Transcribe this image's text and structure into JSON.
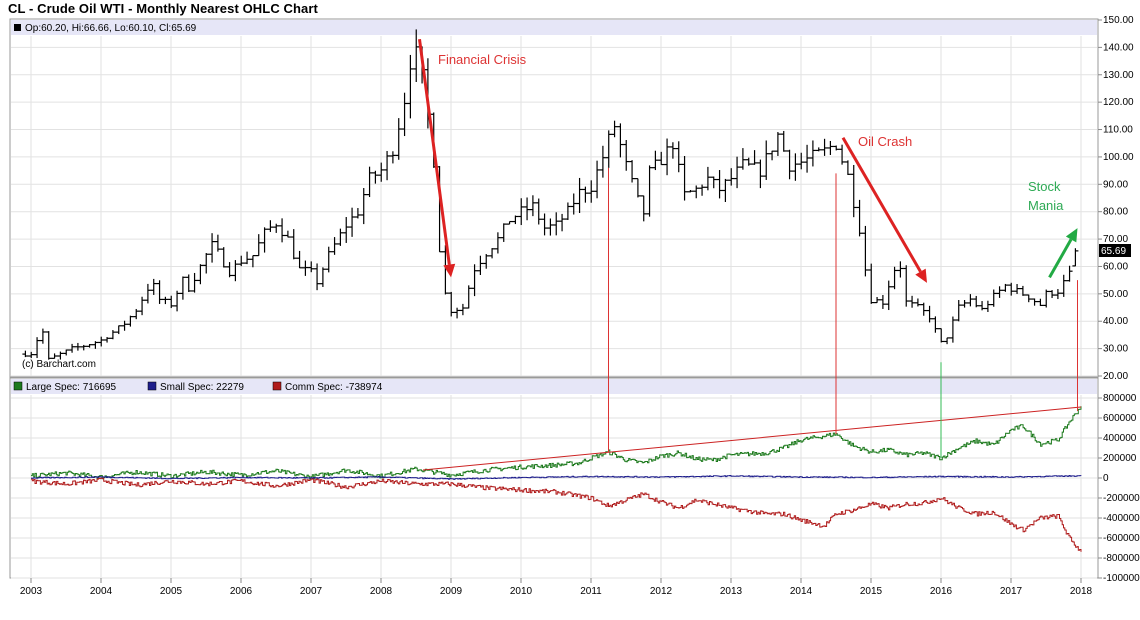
{
  "page": {
    "title": "CL - Crude Oil WTI - Monthly Nearest OHLC Chart"
  },
  "chart_data": [
    {
      "type": "ohlc",
      "legend_text": "Op:60.20, Hi:66.66, Lo:60.10, Cl:65.69",
      "last_price_label": "65.69",
      "watermark": "(c) Barchart.com",
      "ylim": [
        20,
        150
      ],
      "yticks": [
        20,
        30,
        40,
        50,
        60,
        70,
        80,
        90,
        100,
        110,
        120,
        130,
        140,
        150
      ],
      "ytick_labels": [
        "20.00",
        "30.00",
        "40.00",
        "50.00",
        "60.00",
        "70.00",
        "80.00",
        "90.00",
        "100.00",
        "110.00",
        "120.00",
        "130.00",
        "140.00",
        "150.00"
      ],
      "x_anchors": [
        [
          2003,
          31
        ],
        [
          2008.5,
          400
        ],
        [
          2009,
          435
        ]
      ],
      "close_path": [
        [
          2003.0,
          28
        ],
        [
          2003.08,
          33
        ],
        [
          2003.17,
          36
        ],
        [
          2003.25,
          26
        ],
        [
          2003.42,
          28
        ],
        [
          2003.58,
          30
        ],
        [
          2003.75,
          31
        ],
        [
          2004.0,
          33
        ],
        [
          2004.17,
          36
        ],
        [
          2004.33,
          39
        ],
        [
          2004.5,
          44
        ],
        [
          2004.67,
          52
        ],
        [
          2004.75,
          53
        ],
        [
          2004.83,
          48
        ],
        [
          2005.0,
          46
        ],
        [
          2005.17,
          55
        ],
        [
          2005.25,
          52
        ],
        [
          2005.42,
          60
        ],
        [
          2005.58,
          68
        ],
        [
          2005.67,
          65
        ],
        [
          2005.83,
          58
        ],
        [
          2006.0,
          62
        ],
        [
          2006.17,
          64
        ],
        [
          2006.33,
          72
        ],
        [
          2006.5,
          76
        ],
        [
          2006.67,
          70
        ],
        [
          2006.83,
          59
        ],
        [
          2007.0,
          58
        ],
        [
          2007.08,
          54
        ],
        [
          2007.25,
          64
        ],
        [
          2007.5,
          75
        ],
        [
          2007.67,
          80
        ],
        [
          2007.83,
          92
        ],
        [
          2008.0,
          95
        ],
        [
          2008.17,
          103
        ],
        [
          2008.33,
          120
        ],
        [
          2008.45,
          140
        ],
        [
          2008.55,
          135
        ],
        [
          2008.67,
          115
        ],
        [
          2008.75,
          100
        ],
        [
          2008.83,
          68
        ],
        [
          2008.92,
          50
        ],
        [
          2009.0,
          44
        ],
        [
          2009.17,
          45
        ],
        [
          2009.33,
          59
        ],
        [
          2009.5,
          65
        ],
        [
          2009.67,
          70
        ],
        [
          2009.83,
          77
        ],
        [
          2010.0,
          80
        ],
        [
          2010.17,
          82
        ],
        [
          2010.33,
          74
        ],
        [
          2010.5,
          75
        ],
        [
          2010.67,
          80
        ],
        [
          2010.83,
          87
        ],
        [
          2011.0,
          89
        ],
        [
          2011.17,
          100
        ],
        [
          2011.33,
          112
        ],
        [
          2011.5,
          97
        ],
        [
          2011.67,
          84
        ],
        [
          2011.75,
          79
        ],
        [
          2011.83,
          94
        ],
        [
          2012.0,
          99
        ],
        [
          2012.17,
          105
        ],
        [
          2012.33,
          86
        ],
        [
          2012.5,
          88
        ],
        [
          2012.67,
          92
        ],
        [
          2012.83,
          88
        ],
        [
          2013.0,
          92
        ],
        [
          2013.17,
          97
        ],
        [
          2013.42,
          95
        ],
        [
          2013.67,
          108
        ],
        [
          2013.83,
          97
        ],
        [
          2014.0,
          98
        ],
        [
          2014.33,
          102
        ],
        [
          2014.5,
          105
        ],
        [
          2014.67,
          93
        ],
        [
          2014.83,
          75
        ],
        [
          2014.92,
          59
        ],
        [
          2015.0,
          48
        ],
        [
          2015.17,
          47
        ],
        [
          2015.33,
          59
        ],
        [
          2015.42,
          60
        ],
        [
          2015.5,
          47
        ],
        [
          2015.67,
          45
        ],
        [
          2015.83,
          42
        ],
        [
          2016.0,
          32
        ],
        [
          2016.08,
          34
        ],
        [
          2016.25,
          45
        ],
        [
          2016.42,
          48
        ],
        [
          2016.58,
          44
        ],
        [
          2016.75,
          49
        ],
        [
          2016.92,
          53
        ],
        [
          2017.0,
          52
        ],
        [
          2017.25,
          49
        ],
        [
          2017.42,
          46
        ],
        [
          2017.5,
          50
        ],
        [
          2017.67,
          51
        ],
        [
          2017.83,
          57
        ],
        [
          2017.92,
          60
        ],
        [
          2018.0,
          65.69
        ]
      ],
      "annotations": [
        {
          "text": "Financial Crisis",
          "color": "#dd3333"
        },
        {
          "text": "Oil Crash",
          "color": "#dd3333"
        },
        {
          "lines": [
            "Stock",
            "Mania"
          ],
          "color": "#2eaa55"
        }
      ],
      "arrows": [
        {
          "from": [
            2008.55,
            143
          ],
          "to": [
            2009.0,
            56
          ],
          "color": "#dd2222"
        },
        {
          "from": [
            2014.6,
            107
          ],
          "to": [
            2015.8,
            54
          ],
          "color": "#dd2222"
        },
        {
          "from": [
            2017.55,
            56
          ],
          "to": [
            2017.95,
            74
          ],
          "color": "#22aa44"
        }
      ],
      "drop_lines": [
        {
          "x": 2011.25,
          "y_top": 96,
          "color": "#dd3333"
        },
        {
          "x": 2014.5,
          "y_top": 94,
          "color": "#dd3333"
        },
        {
          "x": 2016.0,
          "y_top": 25,
          "color": "#33bb55"
        },
        {
          "x": 2017.95,
          "y_top": 55,
          "color": "#dd3333"
        }
      ]
    },
    {
      "type": "line",
      "legend": [
        {
          "name": "Large Spec: 716695",
          "color": "#1d7a1d"
        },
        {
          "name": "Small Spec: 22279",
          "color": "#1d1d8c"
        },
        {
          "name": "Comm Spec: -738974",
          "color": "#b01c1c"
        }
      ],
      "ylim": [
        -1000000,
        800000
      ],
      "yticks": [
        -1000000,
        -800000,
        -600000,
        -400000,
        -200000,
        0,
        200000,
        400000,
        600000,
        800000
      ],
      "ytick_labels": [
        "-1000000",
        "-800000",
        "-600000",
        "-400000",
        "-200000",
        "0",
        "200000",
        "400000",
        "600000",
        "800000"
      ],
      "large_spec": [
        [
          2003.0,
          20000
        ],
        [
          2003.5,
          50000
        ],
        [
          2004.0,
          10000
        ],
        [
          2004.5,
          60000
        ],
        [
          2005.0,
          20000
        ],
        [
          2005.5,
          60000
        ],
        [
          2006.0,
          30000
        ],
        [
          2006.5,
          70000
        ],
        [
          2007.0,
          10000
        ],
        [
          2007.5,
          80000
        ],
        [
          2008.0,
          20000
        ],
        [
          2008.5,
          90000
        ],
        [
          2009.0,
          30000
        ],
        [
          2009.5,
          80000
        ],
        [
          2010.0,
          110000
        ],
        [
          2010.5,
          130000
        ],
        [
          2010.83,
          150000
        ],
        [
          2011.0,
          200000
        ],
        [
          2011.25,
          260000
        ],
        [
          2011.5,
          180000
        ],
        [
          2011.75,
          150000
        ],
        [
          2012.0,
          220000
        ],
        [
          2012.25,
          250000
        ],
        [
          2012.5,
          190000
        ],
        [
          2012.75,
          180000
        ],
        [
          2013.0,
          230000
        ],
        [
          2013.5,
          250000
        ],
        [
          2013.75,
          300000
        ],
        [
          2014.0,
          380000
        ],
        [
          2014.33,
          420000
        ],
        [
          2014.5,
          440000
        ],
        [
          2014.75,
          320000
        ],
        [
          2015.0,
          260000
        ],
        [
          2015.25,
          280000
        ],
        [
          2015.5,
          230000
        ],
        [
          2015.75,
          250000
        ],
        [
          2016.0,
          200000
        ],
        [
          2016.25,
          300000
        ],
        [
          2016.5,
          370000
        ],
        [
          2016.75,
          330000
        ],
        [
          2017.0,
          480000
        ],
        [
          2017.17,
          520000
        ],
        [
          2017.42,
          340000
        ],
        [
          2017.67,
          380000
        ],
        [
          2017.83,
          560000
        ],
        [
          2018.0,
          716695
        ]
      ],
      "small_spec": [
        [
          2003.0,
          0
        ],
        [
          2004.0,
          10000
        ],
        [
          2005.0,
          -5000
        ],
        [
          2006.0,
          5000
        ],
        [
          2007.0,
          0
        ],
        [
          2008.0,
          10000
        ],
        [
          2009.0,
          -10000
        ],
        [
          2010.0,
          5000
        ],
        [
          2011.0,
          15000
        ],
        [
          2012.0,
          10000
        ],
        [
          2013.0,
          20000
        ],
        [
          2014.0,
          10000
        ],
        [
          2015.0,
          5000
        ],
        [
          2016.0,
          15000
        ],
        [
          2017.0,
          10000
        ],
        [
          2018.0,
          22279
        ]
      ],
      "comm_spec": [
        [
          2003.0,
          -30000
        ],
        [
          2003.5,
          -60000
        ],
        [
          2004.0,
          -20000
        ],
        [
          2004.5,
          -70000
        ],
        [
          2005.0,
          -30000
        ],
        [
          2005.5,
          -60000
        ],
        [
          2006.0,
          -30000
        ],
        [
          2006.5,
          -80000
        ],
        [
          2007.0,
          -20000
        ],
        [
          2007.5,
          -90000
        ],
        [
          2008.0,
          -30000
        ],
        [
          2008.5,
          -60000
        ],
        [
          2009.0,
          -60000
        ],
        [
          2009.5,
          -100000
        ],
        [
          2010.0,
          -120000
        ],
        [
          2010.5,
          -140000
        ],
        [
          2011.0,
          -200000
        ],
        [
          2011.25,
          -280000
        ],
        [
          2011.5,
          -220000
        ],
        [
          2011.75,
          -160000
        ],
        [
          2012.0,
          -240000
        ],
        [
          2012.25,
          -300000
        ],
        [
          2012.5,
          -220000
        ],
        [
          2012.75,
          -260000
        ],
        [
          2013.0,
          -300000
        ],
        [
          2013.5,
          -360000
        ],
        [
          2013.75,
          -360000
        ],
        [
          2014.0,
          -420000
        ],
        [
          2014.33,
          -480000
        ],
        [
          2014.5,
          -360000
        ],
        [
          2014.75,
          -320000
        ],
        [
          2015.0,
          -260000
        ],
        [
          2015.25,
          -300000
        ],
        [
          2015.5,
          -260000
        ],
        [
          2015.75,
          -250000
        ],
        [
          2016.0,
          -200000
        ],
        [
          2016.25,
          -300000
        ],
        [
          2016.5,
          -360000
        ],
        [
          2016.75,
          -340000
        ],
        [
          2017.0,
          -460000
        ],
        [
          2017.17,
          -520000
        ],
        [
          2017.42,
          -400000
        ],
        [
          2017.67,
          -380000
        ],
        [
          2017.83,
          -600000
        ],
        [
          2018.0,
          -738974
        ]
      ],
      "trend_line": {
        "from": [
          2008.6,
          80000
        ],
        "to": [
          2018.0,
          710000
        ],
        "color": "#cc2222"
      }
    }
  ],
  "x_axis": {
    "years": [
      "2003",
      "2004",
      "2005",
      "2006",
      "2007",
      "2008",
      "2009",
      "2010",
      "2011",
      "2012",
      "2013",
      "2014",
      "2015",
      "2016",
      "2017",
      "2018"
    ]
  }
}
